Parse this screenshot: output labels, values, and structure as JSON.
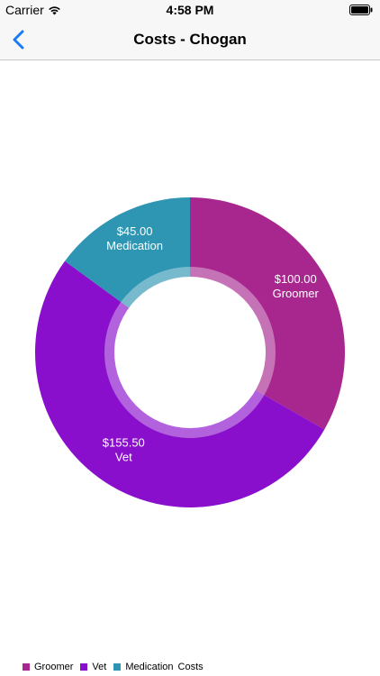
{
  "status_bar": {
    "carrier": "Carrier",
    "time": "4:58 PM"
  },
  "nav": {
    "title": "Costs - Chogan"
  },
  "chart_data": {
    "type": "pie",
    "description_label": "Costs",
    "slices": [
      {
        "label": "Groomer",
        "value": 100.0,
        "value_text": "$100.00",
        "color": "#A8278F"
      },
      {
        "label": "Vet",
        "value": 155.5,
        "value_text": "$155.50",
        "color": "#8A0FCC"
      },
      {
        "label": "Medication",
        "value": 45.0,
        "value_text": "$45.00",
        "color": "#2E95B3"
      }
    ],
    "hole_color": "#ffffff",
    "legend_placement": "bottom-left"
  },
  "colors": {
    "accent": "#1a7cf5"
  }
}
